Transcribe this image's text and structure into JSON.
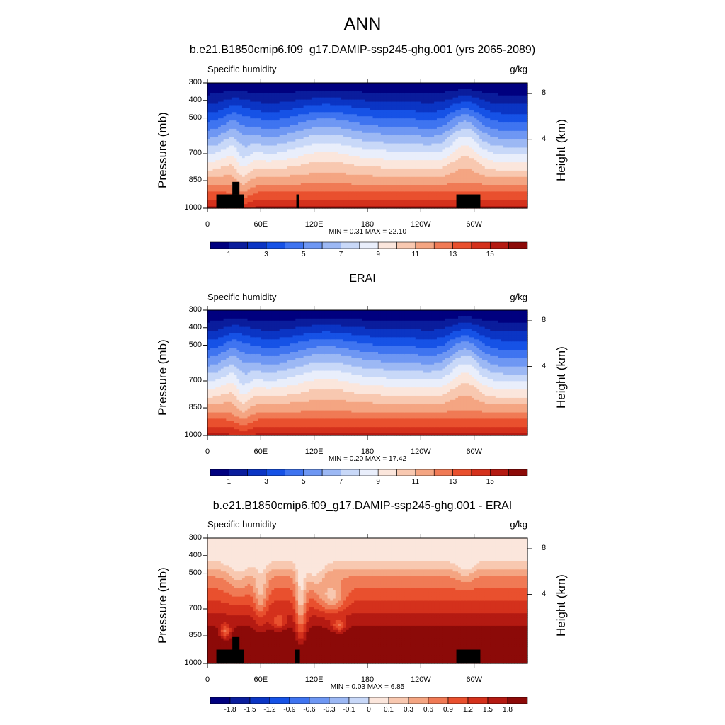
{
  "title": "ANN",
  "chart_data": [
    {
      "type": "heatmap",
      "title": "b.e21.B1850cmip6.f09_g17.DAMIP-ssp245-ghg.001 (yrs 2065-2089)",
      "left_string": "Specific humidity",
      "right_string": "g/kg",
      "ylabel": "Pressure (mb)",
      "ylabel_right": "Height (km)",
      "y_ticks": [
        "300",
        "400",
        "500",
        "700",
        "850",
        "1000"
      ],
      "y_ticks_right": [
        "8",
        "4"
      ],
      "x_ticks": [
        "0",
        "60E",
        "120E",
        "180",
        "120W",
        "60W"
      ],
      "min_max": "MIN =   0.31  MAX =  22.10",
      "colorbar_labels": [
        "1",
        "3",
        "5",
        "7",
        "9",
        "11",
        "13",
        "15"
      ],
      "colors": [
        "#00007f",
        "#0a1d9c",
        "#0b35c4",
        "#1652e6",
        "#3f74f0",
        "#6e97f3",
        "#9cb8f4",
        "#c8d8f8",
        "#e9eefb",
        "#fbe6dc",
        "#f8c8b0",
        "#f4a582",
        "#f07a55",
        "#e9502e",
        "#d4311c",
        "#b41a12",
        "#8c0a08"
      ],
      "fill_range": [
        0.31,
        22.1
      ]
    },
    {
      "type": "heatmap",
      "title": "ERAI",
      "left_string": "Specific humidity",
      "right_string": "g/kg",
      "ylabel": "Pressure (mb)",
      "ylabel_right": "Height (km)",
      "y_ticks": [
        "300",
        "400",
        "500",
        "700",
        "850",
        "1000"
      ],
      "y_ticks_right": [
        "8",
        "4"
      ],
      "x_ticks": [
        "0",
        "60E",
        "120E",
        "180",
        "120W",
        "60W"
      ],
      "min_max": "MIN =   0.20  MAX =  17.42",
      "colorbar_labels": [
        "1",
        "3",
        "5",
        "7",
        "9",
        "11",
        "13",
        "15"
      ],
      "colors": [
        "#00007f",
        "#0a1d9c",
        "#0b35c4",
        "#1652e6",
        "#3f74f0",
        "#6e97f3",
        "#9cb8f4",
        "#c8d8f8",
        "#e9eefb",
        "#fbe6dc",
        "#f8c8b0",
        "#f4a582",
        "#f07a55",
        "#e9502e",
        "#d4311c",
        "#b41a12",
        "#8c0a08"
      ],
      "fill_range": [
        0.2,
        17.42
      ]
    },
    {
      "type": "heatmap",
      "title": "b.e21.B1850cmip6.f09_g17.DAMIP-ssp245-ghg.001 - ERAI",
      "left_string": "Specific humidity",
      "right_string": "g/kg",
      "ylabel": "Pressure (mb)",
      "ylabel_right": "Height (km)",
      "y_ticks": [
        "300",
        "400",
        "500",
        "700",
        "850",
        "1000"
      ],
      "y_ticks_right": [
        "8",
        "4"
      ],
      "x_ticks": [
        "0",
        "60E",
        "120E",
        "180",
        "120W",
        "60W"
      ],
      "min_max": "MIN =   0.03  MAX =   6.85",
      "colorbar_labels": [
        "-1.8",
        "-1.5",
        "-1.2",
        "-0.9",
        "-0.6",
        "-0.3",
        "-0.1",
        "0",
        "0.1",
        "0.3",
        "0.6",
        "0.9",
        "1.2",
        "1.5",
        "1.8"
      ],
      "colors": [
        "#00007f",
        "#0a1d9c",
        "#0b35c4",
        "#1652e6",
        "#3f74f0",
        "#6e97f3",
        "#9cb8f4",
        "#c8d8f8",
        "#fbe6dc",
        "#f8c8b0",
        "#f4a582",
        "#f07a55",
        "#e9502e",
        "#d4311c",
        "#b41a12",
        "#8c0a08"
      ],
      "fill_range": [
        0.03,
        6.85
      ]
    }
  ]
}
